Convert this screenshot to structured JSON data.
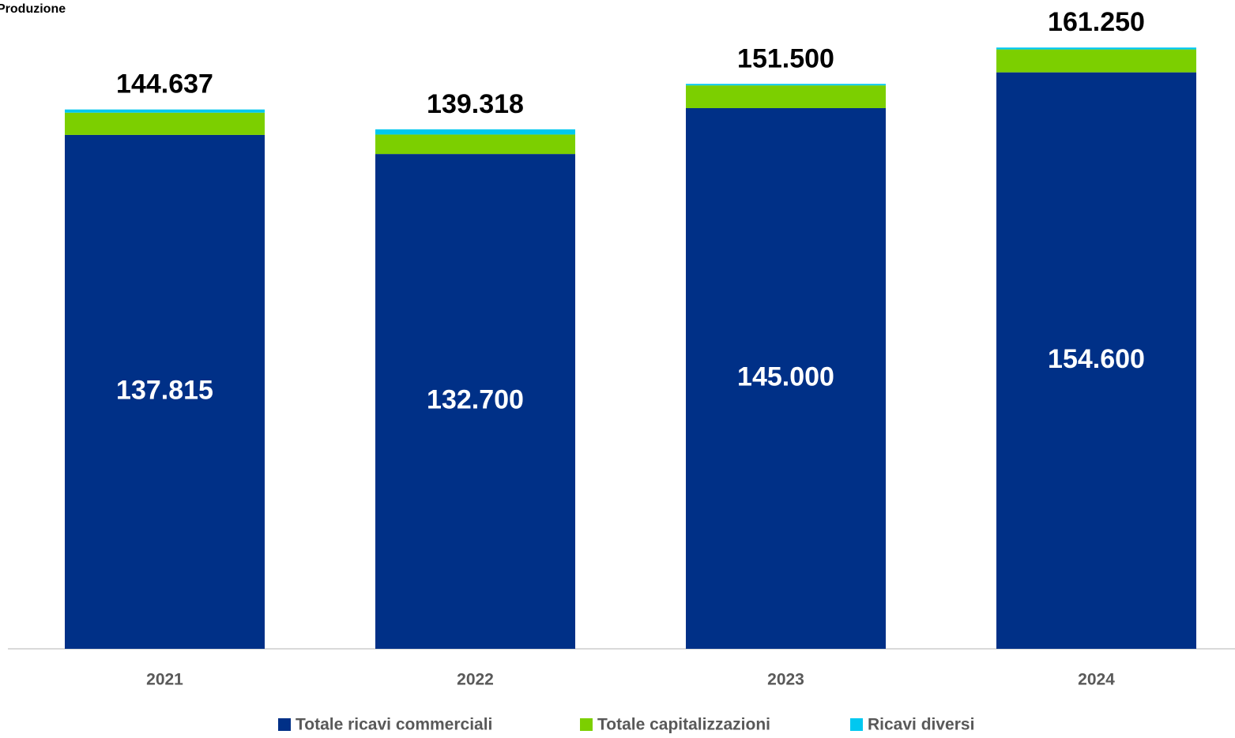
{
  "chart_data": {
    "type": "stacked-bar",
    "title": "Produzione",
    "categories": [
      "2021",
      "2022",
      "2023",
      "2024"
    ],
    "series": [
      {
        "name": "Totale ricavi commerciali",
        "color": "#003087",
        "values": [
          137815,
          132700,
          145000,
          154600
        ],
        "value_labels": [
          "137.815",
          "132.700",
          "145.000",
          "154.600"
        ]
      },
      {
        "name": "Totale capitalizzazioni",
        "color": "#7ccf00",
        "values": [
          5972,
          5218,
          6100,
          6150
        ]
      },
      {
        "name": "Ricavi diversi",
        "color": "#00c8f0",
        "values": [
          850,
          1400,
          400,
          500
        ]
      }
    ],
    "totals": {
      "values": [
        144637,
        139318,
        151500,
        161250
      ],
      "value_labels": [
        "144.637",
        "139.318",
        "151.500",
        "161.250"
      ]
    },
    "ylim": [
      0,
      174000
    ],
    "grid": false
  }
}
